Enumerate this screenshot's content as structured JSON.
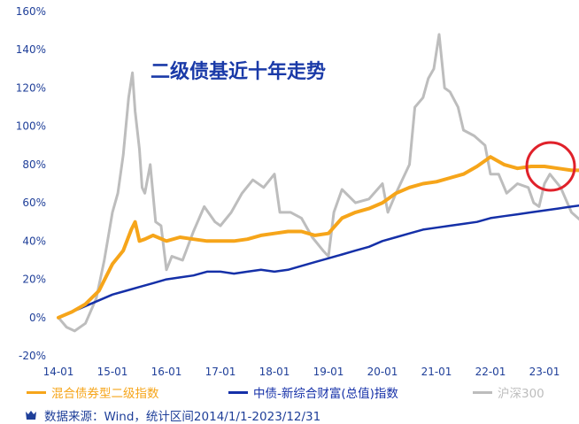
{
  "chart_data": {
    "type": "line",
    "title": "二级债基近十年走势",
    "xlabel": "",
    "ylabel": "",
    "x_ticks": [
      "14-01",
      "15-01",
      "16-01",
      "17-01",
      "18-01",
      "19-01",
      "20-01",
      "21-01",
      "22-01",
      "23-01"
    ],
    "y_ticks": [
      "160%",
      "140%",
      "120%",
      "100%",
      "80%",
      "60%",
      "40%",
      "20%",
      "0%",
      "-20%"
    ],
    "ylim": [
      -20,
      160
    ],
    "xlim": [
      2014.0,
      2023.92
    ],
    "grid": false,
    "legend_position": "bottom",
    "annotation": "red circle highlighting the end of the 混合债券型二级指数 series",
    "series": [
      {
        "name": "混合债券型二级指数",
        "color": "#f6a51a",
        "x": [
          2014.0,
          2014.25,
          2014.5,
          2014.75,
          2015.0,
          2015.2,
          2015.35,
          2015.42,
          2015.5,
          2015.6,
          2015.75,
          2016.0,
          2016.25,
          2016.5,
          2016.75,
          2017.0,
          2017.25,
          2017.5,
          2017.75,
          2018.0,
          2018.25,
          2018.5,
          2018.75,
          2019.0,
          2019.25,
          2019.5,
          2019.75,
          2020.0,
          2020.25,
          2020.5,
          2020.75,
          2021.0,
          2021.25,
          2021.5,
          2021.75,
          2022.0,
          2022.25,
          2022.5,
          2022.75,
          2023.0,
          2023.25,
          2023.5,
          2023.75,
          2023.9
        ],
        "values": [
          0,
          3,
          7,
          14,
          28,
          35,
          46,
          50,
          40,
          41,
          43,
          40,
          42,
          41,
          40,
          40,
          40,
          41,
          43,
          44,
          45,
          45,
          43,
          44,
          52,
          55,
          57,
          60,
          65,
          68,
          70,
          71,
          73,
          75,
          79,
          84,
          80,
          78,
          79,
          79,
          78,
          77,
          77,
          75
        ]
      },
      {
        "name": "中债-新综合财富(总值)指数",
        "color": "#1530a8",
        "x": [
          2014.0,
          2014.25,
          2014.5,
          2014.75,
          2015.0,
          2015.25,
          2015.5,
          2015.75,
          2016.0,
          2016.25,
          2016.5,
          2016.75,
          2017.0,
          2017.25,
          2017.5,
          2017.75,
          2018.0,
          2018.25,
          2018.5,
          2018.75,
          2019.0,
          2019.25,
          2019.5,
          2019.75,
          2020.0,
          2020.25,
          2020.5,
          2020.75,
          2021.0,
          2021.25,
          2021.5,
          2021.75,
          2022.0,
          2022.25,
          2022.5,
          2022.75,
          2023.0,
          2023.25,
          2023.5,
          2023.75,
          2023.9
        ],
        "values": [
          0,
          3,
          6,
          9,
          12,
          14,
          16,
          18,
          20,
          21,
          22,
          24,
          24,
          23,
          24,
          25,
          24,
          25,
          27,
          29,
          31,
          33,
          35,
          37,
          40,
          42,
          44,
          46,
          47,
          48,
          49,
          50,
          52,
          53,
          54,
          55,
          56,
          57,
          58,
          59,
          61
        ]
      },
      {
        "name": "沪深300",
        "color": "#bdbdbd",
        "x": [
          2014.0,
          2014.15,
          2014.3,
          2014.5,
          2014.7,
          2014.85,
          2015.0,
          2015.1,
          2015.2,
          2015.3,
          2015.37,
          2015.42,
          2015.5,
          2015.55,
          2015.6,
          2015.7,
          2015.8,
          2015.9,
          2016.0,
          2016.1,
          2016.3,
          2016.5,
          2016.7,
          2016.9,
          2017.0,
          2017.2,
          2017.4,
          2017.6,
          2017.8,
          2018.0,
          2018.1,
          2018.3,
          2018.5,
          2018.7,
          2018.9,
          2019.0,
          2019.1,
          2019.25,
          2019.5,
          2019.75,
          2020.0,
          2020.1,
          2020.25,
          2020.5,
          2020.6,
          2020.75,
          2020.85,
          2020.95,
          2021.05,
          2021.15,
          2021.25,
          2021.4,
          2021.5,
          2021.7,
          2021.9,
          2022.0,
          2022.15,
          2022.3,
          2022.5,
          2022.7,
          2022.8,
          2022.9,
          2023.0,
          2023.1,
          2023.3,
          2023.5,
          2023.7,
          2023.9
        ],
        "values": [
          0,
          -5,
          -7,
          -3,
          10,
          30,
          55,
          65,
          85,
          115,
          128,
          108,
          88,
          68,
          65,
          80,
          50,
          48,
          25,
          32,
          30,
          45,
          58,
          50,
          48,
          55,
          65,
          72,
          68,
          75,
          55,
          55,
          52,
          42,
          35,
          32,
          55,
          67,
          60,
          62,
          70,
          55,
          65,
          80,
          110,
          115,
          125,
          130,
          148,
          120,
          118,
          110,
          98,
          95,
          90,
          75,
          75,
          65,
          70,
          68,
          60,
          58,
          70,
          75,
          68,
          55,
          50,
          42
        ]
      }
    ]
  },
  "legend": {
    "items": [
      {
        "label": "混合债券型二级指数",
        "color": "#f6a51a"
      },
      {
        "label": "中债-新综合财富(总值)指数",
        "color": "#1530a8"
      },
      {
        "label": "沪深300",
        "color": "#bdbdbd"
      }
    ]
  },
  "source": "数据来源：Wind，统计区间2014/1/1-2023/12/31",
  "colors": {
    "text": "#1f3f99",
    "highlight_circle": "#e0212a"
  }
}
